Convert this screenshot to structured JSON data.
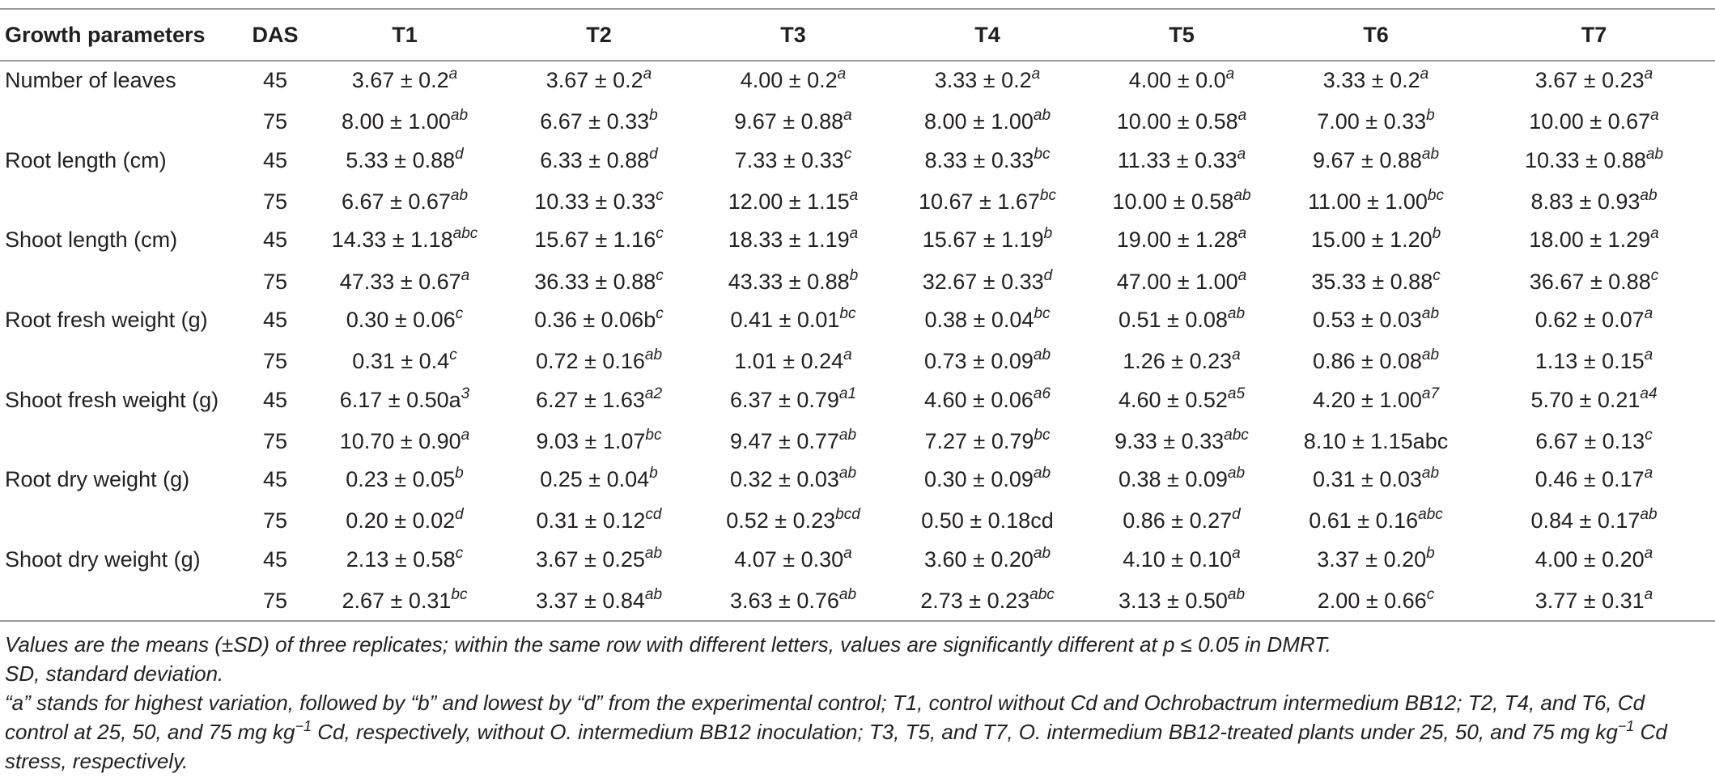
{
  "table": {
    "headers": [
      "Growth parameters",
      "DAS",
      "T1",
      "T2",
      "T3",
      "T4",
      "T5",
      "T6",
      "T7"
    ],
    "rows": [
      {
        "param": "Number of leaves",
        "das": "45",
        "cells": [
          {
            "v": "3.67 ± 0.2",
            "s": "a"
          },
          {
            "v": "3.67 ± 0.2",
            "s": "a"
          },
          {
            "v": "4.00 ± 0.2",
            "s": "a"
          },
          {
            "v": "3.33 ± 0.2",
            "s": "a"
          },
          {
            "v": "4.00 ± 0.0",
            "s": "a"
          },
          {
            "v": "3.33 ± 0.2",
            "s": "a"
          },
          {
            "v": "3.67 ± 0.23",
            "s": "a"
          }
        ]
      },
      {
        "param": "",
        "das": "75",
        "cells": [
          {
            "v": "8.00 ± 1.00",
            "s": "ab"
          },
          {
            "v": "6.67 ± 0.33",
            "s": "b"
          },
          {
            "v": "9.67 ± 0.88",
            "s": "a"
          },
          {
            "v": "8.00 ± 1.00",
            "s": "ab"
          },
          {
            "v": "10.00 ± 0.58",
            "s": "a"
          },
          {
            "v": "7.00 ± 0.33",
            "s": "b"
          },
          {
            "v": "10.00 ± 0.67",
            "s": "a"
          }
        ]
      },
      {
        "param": "Root length (cm)",
        "das": "45",
        "cells": [
          {
            "v": "5.33 ± 0.88",
            "s": "d"
          },
          {
            "v": "6.33 ± 0.88",
            "s": "d"
          },
          {
            "v": "7.33 ± 0.33",
            "s": "c"
          },
          {
            "v": "8.33 ± 0.33",
            "s": "bc"
          },
          {
            "v": "11.33 ± 0.33",
            "s": "a"
          },
          {
            "v": "9.67 ± 0.88",
            "s": "ab"
          },
          {
            "v": "10.33 ± 0.88",
            "s": "ab"
          }
        ]
      },
      {
        "param": "",
        "das": "75",
        "cells": [
          {
            "v": "6.67 ± 0.67",
            "s": "ab"
          },
          {
            "v": "10.33 ± 0.33",
            "s": "c"
          },
          {
            "v": "12.00 ± 1.15",
            "s": "a"
          },
          {
            "v": "10.67 ± 1.67",
            "s": "bc"
          },
          {
            "v": "10.00 ± 0.58",
            "s": "ab"
          },
          {
            "v": "11.00 ± 1.00",
            "s": "bc"
          },
          {
            "v": "8.83 ± 0.93",
            "s": "ab"
          }
        ]
      },
      {
        "param": "Shoot length (cm)",
        "das": "45",
        "cells": [
          {
            "v": "14.33 ± 1.18",
            "s": "abc"
          },
          {
            "v": "15.67 ± 1.16",
            "s": "c"
          },
          {
            "v": "18.33 ± 1.19",
            "s": "a"
          },
          {
            "v": "15.67 ± 1.19",
            "s": "b"
          },
          {
            "v": "19.00 ± 1.28",
            "s": "a"
          },
          {
            "v": "15.00 ± 1.20",
            "s": "b"
          },
          {
            "v": "18.00 ± 1.29",
            "s": "a"
          }
        ]
      },
      {
        "param": "",
        "das": "75",
        "cells": [
          {
            "v": "47.33 ± 0.67",
            "s": "a"
          },
          {
            "v": "36.33 ± 0.88",
            "s": "c"
          },
          {
            "v": "43.33 ± 0.88",
            "s": "b"
          },
          {
            "v": "32.67 ± 0.33",
            "s": "d"
          },
          {
            "v": "47.00 ± 1.00",
            "s": "a"
          },
          {
            "v": "35.33 ± 0.88",
            "s": "c"
          },
          {
            "v": "36.67 ± 0.88",
            "s": "c"
          }
        ]
      },
      {
        "param": "Root fresh weight (g)",
        "das": "45",
        "cells": [
          {
            "v": "0.30 ± 0.06",
            "s": "c"
          },
          {
            "v": "0.36 ± 0.06b",
            "s": "c"
          },
          {
            "v": "0.41 ± 0.01",
            "s": "bc"
          },
          {
            "v": "0.38 ± 0.04",
            "s": "bc"
          },
          {
            "v": "0.51 ± 0.08",
            "s": "ab"
          },
          {
            "v": "0.53 ± 0.03",
            "s": "ab"
          },
          {
            "v": "0.62 ± 0.07",
            "s": "a"
          }
        ]
      },
      {
        "param": "",
        "das": "75",
        "cells": [
          {
            "v": "0.31 ± 0.4",
            "s": "c"
          },
          {
            "v": "0.72 ± 0.16",
            "s": "ab"
          },
          {
            "v": "1.01 ± 0.24",
            "s": "a"
          },
          {
            "v": "0.73 ± 0.09",
            "s": "ab"
          },
          {
            "v": "1.26 ± 0.23",
            "s": "a"
          },
          {
            "v": "0.86 ± 0.08",
            "s": "ab"
          },
          {
            "v": "1.13 ± 0.15",
            "s": "a"
          }
        ]
      },
      {
        "param": "Shoot fresh weight (g)",
        "das": "45",
        "cells": [
          {
            "v": "6.17 ± 0.50a",
            "s": "3"
          },
          {
            "v": "6.27 ± 1.63",
            "s": "a2"
          },
          {
            "v": "6.37 ± 0.79",
            "s": "a1"
          },
          {
            "v": "4.60 ± 0.06",
            "s": "a6"
          },
          {
            "v": "4.60 ± 0.52",
            "s": "a5"
          },
          {
            "v": "4.20 ± 1.00",
            "s": "a7"
          },
          {
            "v": "5.70 ± 0.21",
            "s": "a4"
          }
        ]
      },
      {
        "param": "",
        "das": "75",
        "cells": [
          {
            "v": "10.70 ± 0.90",
            "s": "a"
          },
          {
            "v": "9.03 ± 1.07",
            "s": "bc"
          },
          {
            "v": "9.47 ± 0.77",
            "s": "ab"
          },
          {
            "v": "7.27 ± 0.79",
            "s": "bc"
          },
          {
            "v": "9.33 ± 0.33",
            "s": "abc"
          },
          {
            "v": "8.10 ± 1.15abc",
            "s": ""
          },
          {
            "v": "6.67 ± 0.13",
            "s": "c"
          }
        ]
      },
      {
        "param": "Root dry weight (g)",
        "das": "45",
        "cells": [
          {
            "v": "0.23 ± 0.05",
            "s": "b"
          },
          {
            "v": "0.25 ± 0.04",
            "s": "b"
          },
          {
            "v": "0.32 ± 0.03",
            "s": "ab"
          },
          {
            "v": "0.30 ± 0.09",
            "s": "ab"
          },
          {
            "v": "0.38 ± 0.09",
            "s": "ab"
          },
          {
            "v": "0.31 ± 0.03",
            "s": "ab"
          },
          {
            "v": "0.46 ± 0.17",
            "s": "a"
          }
        ]
      },
      {
        "param": "",
        "das": "75",
        "cells": [
          {
            "v": "0.20 ± 0.02",
            "s": "d"
          },
          {
            "v": "0.31 ± 0.12",
            "s": "cd"
          },
          {
            "v": "0.52 ± 0.23",
            "s": "bcd"
          },
          {
            "v": "0.50 ± 0.18cd",
            "s": ""
          },
          {
            "v": "0.86 ± 0.27",
            "s": "d"
          },
          {
            "v": "0.61 ± 0.16",
            "s": "abc"
          },
          {
            "v": "0.84 ± 0.17",
            "s": "ab"
          }
        ]
      },
      {
        "param": "Shoot dry weight (g)",
        "das": "45",
        "cells": [
          {
            "v": "2.13 ± 0.58",
            "s": "c"
          },
          {
            "v": "3.67 ± 0.25",
            "s": "ab"
          },
          {
            "v": "4.07 ± 0.30",
            "s": "a"
          },
          {
            "v": "3.60 ± 0.20",
            "s": "ab"
          },
          {
            "v": "4.10 ± 0.10",
            "s": "a"
          },
          {
            "v": "3.37 ± 0.20",
            "s": "b"
          },
          {
            "v": "4.00 ± 0.20",
            "s": "a"
          }
        ]
      },
      {
        "param": "",
        "das": "75",
        "cells": [
          {
            "v": "2.67 ± 0.31",
            "s": "bc"
          },
          {
            "v": "3.37 ± 0.84",
            "s": "ab"
          },
          {
            "v": "3.63 ± 0.76",
            "s": "ab"
          },
          {
            "v": "2.73 ± 0.23",
            "s": "abc"
          },
          {
            "v": "3.13 ± 0.50",
            "s": "ab"
          },
          {
            "v": "2.00 ± 0.66",
            "s": "c"
          },
          {
            "v": "3.77 ± 0.31",
            "s": "a"
          }
        ]
      }
    ]
  },
  "notes": {
    "line1": "Values are the means (±SD) of three replicates; within the same row with different letters, values are significantly different at p ≤ 0.05 in DMRT.",
    "line2": "SD, standard deviation.",
    "line3_pre": "“a” stands for highest variation, followed by “b” and lowest by “d” from the experimental control; T1, control without Cd and Ochrobactrum intermedium BB12; T2, T4, and T6, Cd control at 25, 50, and 75 mg kg",
    "line3_sup": "−1",
    "line3_mid": " Cd, respectively, without O. intermedium BB12 inoculation; T3, T5, and T7, O. intermedium BB12-treated plants under 25, 50, and 75 mg kg",
    "line3_sup2": "−1",
    "line3_post": " Cd stress, respectively."
  }
}
